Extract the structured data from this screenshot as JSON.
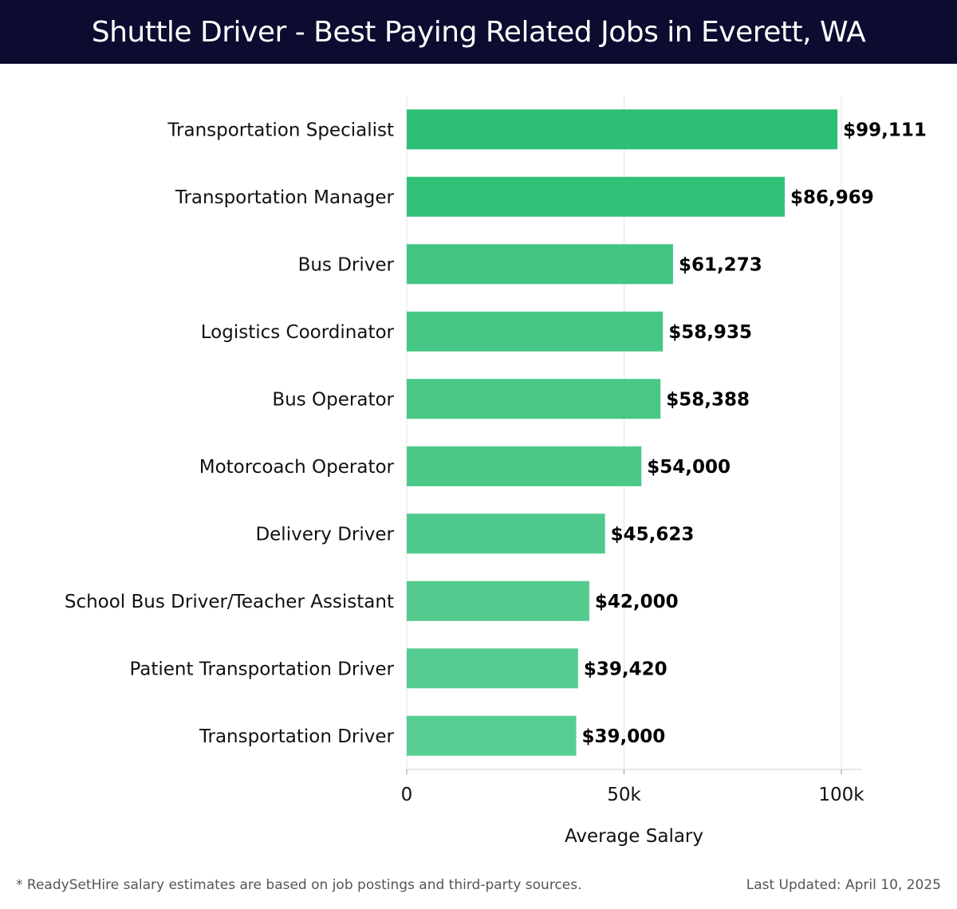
{
  "header": {
    "title": "Shuttle Driver - Best Paying Related Jobs in Everett, WA"
  },
  "chart_data": {
    "type": "bar",
    "orientation": "horizontal",
    "title": "Shuttle Driver - Best Paying Related Jobs in Everett, WA",
    "xlabel": "Average Salary",
    "ylabel": "",
    "xlim": [
      0,
      100000
    ],
    "xticks": [
      0,
      50000,
      100000
    ],
    "xtick_labels": [
      "0",
      "50k",
      "100k"
    ],
    "grid": "vertical",
    "categories": [
      "Transportation Specialist",
      "Transportation Manager",
      "Bus Driver",
      "Logistics Coordinator",
      "Bus Operator",
      "Motorcoach Operator",
      "Delivery Driver",
      "School Bus Driver/Teacher Assistant",
      "Patient Transportation Driver",
      "Transportation Driver"
    ],
    "values": [
      99111,
      86969,
      61273,
      58935,
      58388,
      54000,
      45623,
      42000,
      39420,
      39000
    ],
    "value_labels": [
      "$99,111",
      "$86,969",
      "$61,273",
      "$58,935",
      "$58,388",
      "$54,000",
      "$45,623",
      "$42,000",
      "$39,420",
      "$39,000"
    ],
    "colors": [
      "#2cbf75",
      "#31c178",
      "#43c583",
      "#46c685",
      "#49c787",
      "#4cc889",
      "#50ca8c",
      "#53cb8f",
      "#55cc91",
      "#58cd93"
    ]
  },
  "footer": {
    "note": "* ReadySetHire salary estimates are based on job postings and third-party sources.",
    "updated": "Last Updated: April 10, 2025"
  }
}
